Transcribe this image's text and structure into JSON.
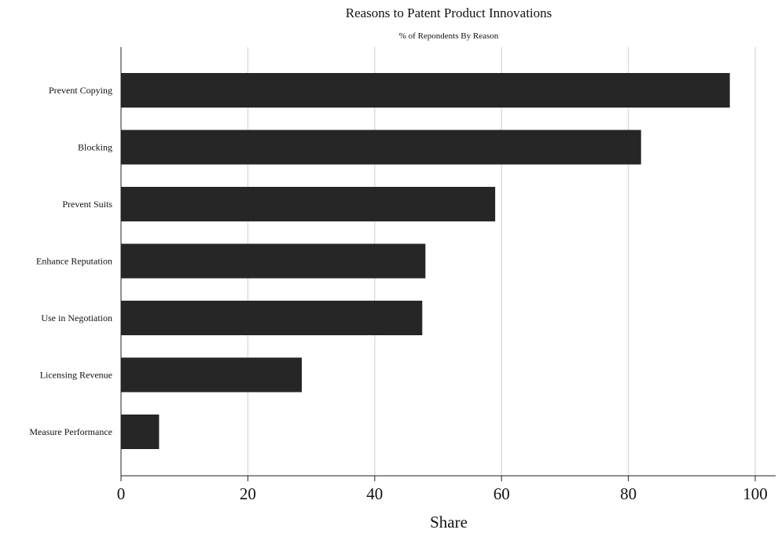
{
  "chart_data": {
    "type": "bar",
    "orientation": "horizontal",
    "title": "Reasons to Patent Product Innovations",
    "subtitle": "% of Repondents By Reason",
    "xlabel": "Share",
    "ylabel": "",
    "categories": [
      "Prevent Copying",
      "Blocking",
      "Prevent Suits",
      "Enhance Reputation",
      "Use in Negotiation",
      "Licensing Revenue",
      "Measure Performance"
    ],
    "values": [
      96,
      82,
      59,
      48,
      47.5,
      28.5,
      6
    ],
    "xlim": [
      0,
      100
    ],
    "xticks": [
      "0",
      "20",
      "40",
      "60",
      "80",
      "100"
    ],
    "grid": true,
    "legend": "none",
    "colors": {
      "bar": "#262626",
      "grid": "#dddddd",
      "axis": "#222222"
    }
  }
}
